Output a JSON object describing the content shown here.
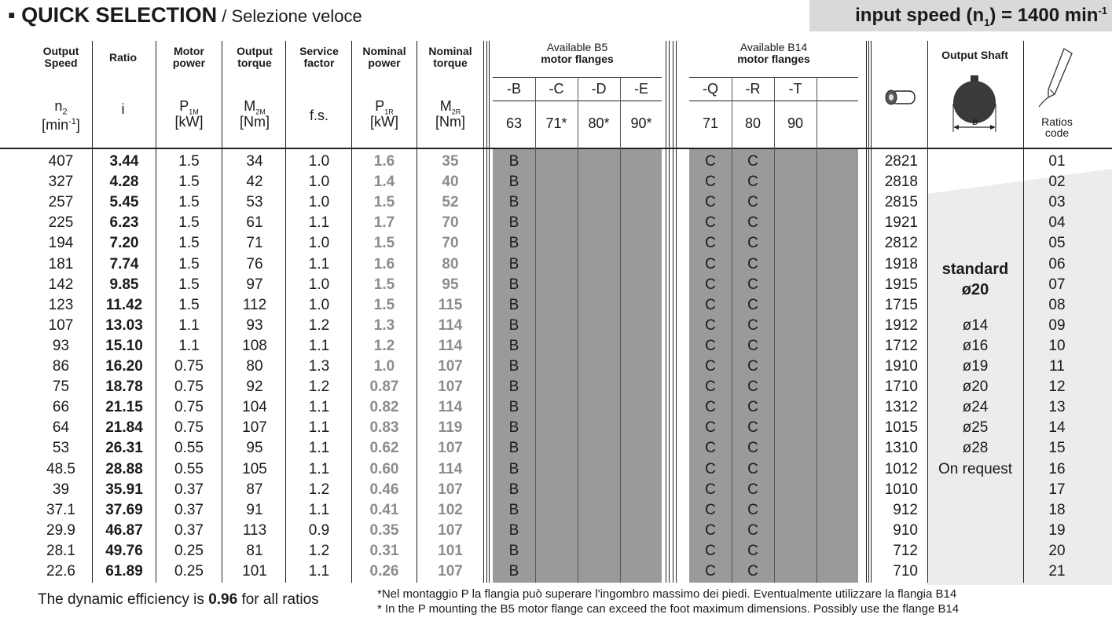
{
  "title": {
    "main": "QUICK SELECTION",
    "sub": " / Selezione veloce",
    "bullet": "▪"
  },
  "input_speed": {
    "label": "input speed (n",
    "sub": "1",
    "value": ") = 1400 min",
    "sup": "-1"
  },
  "headers": {
    "output_speed": [
      "Output",
      "Speed"
    ],
    "output_speed_sym": "n",
    "output_speed_sub": "2",
    "output_speed_unit": "[min",
    "output_speed_unit_sup": "-1",
    "output_speed_unit_end": "]",
    "ratio": "Ratio",
    "ratio_sym": "i",
    "motor_power": [
      "Motor",
      "power"
    ],
    "motor_power_sym": "P",
    "motor_power_sub": "1M",
    "motor_power_unit": "[kW]",
    "output_torque": [
      "Output",
      "torque"
    ],
    "output_torque_sym": "M",
    "output_torque_sub": "2M",
    "output_torque_unit": "[Nm]",
    "service_factor": [
      "Service",
      "factor"
    ],
    "service_factor_sym": "f.s.",
    "nominal_power": [
      "Nominal",
      "power"
    ],
    "nominal_power_sym": "P",
    "nominal_power_sub": "1R",
    "nominal_power_unit": "[kW]",
    "nominal_torque": [
      "Nominal",
      "torque"
    ],
    "nominal_torque_sym": "M",
    "nominal_torque_sub": "2R",
    "nominal_torque_unit": "[Nm]",
    "b5": [
      "Available B5",
      "motor flanges"
    ],
    "b5_cols": [
      "-B",
      "-C",
      "-D",
      "-E"
    ],
    "b5_sizes": [
      "63",
      "71*",
      "80*",
      "90*"
    ],
    "b14": [
      "Available B14",
      "motor flanges"
    ],
    "b14_cols": [
      "-Q",
      "-R",
      "-T"
    ],
    "b14_sizes": [
      "71",
      "80",
      "90"
    ],
    "output_shaft": "Output Shaft",
    "shaft_dia": "ø",
    "ratios_code": [
      "Ratios",
      "code"
    ]
  },
  "rows": [
    {
      "n2": "407",
      "i": "3.44",
      "p1m": "1.5",
      "m2m": "34",
      "fs": "1.0",
      "p1r": "1.6",
      "m2r": "35",
      "b": "B",
      "q": "C",
      "r": "C",
      "worm": "2821",
      "shaft": "",
      "code": "01"
    },
    {
      "n2": "327",
      "i": "4.28",
      "p1m": "1.5",
      "m2m": "42",
      "fs": "1.0",
      "p1r": "1.4",
      "m2r": "40",
      "b": "B",
      "q": "C",
      "r": "C",
      "worm": "2818",
      "shaft": "",
      "code": "02"
    },
    {
      "n2": "257",
      "i": "5.45",
      "p1m": "1.5",
      "m2m": "53",
      "fs": "1.0",
      "p1r": "1.5",
      "m2r": "52",
      "b": "B",
      "q": "C",
      "r": "C",
      "worm": "2815",
      "shaft": "",
      "code": "03"
    },
    {
      "n2": "225",
      "i": "6.23",
      "p1m": "1.5",
      "m2m": "61",
      "fs": "1.1",
      "p1r": "1.7",
      "m2r": "70",
      "b": "B",
      "q": "C",
      "r": "C",
      "worm": "1921",
      "shaft": "",
      "code": "04"
    },
    {
      "n2": "194",
      "i": "7.20",
      "p1m": "1.5",
      "m2m": "71",
      "fs": "1.0",
      "p1r": "1.5",
      "m2r": "70",
      "b": "B",
      "q": "C",
      "r": "C",
      "worm": "2812",
      "shaft": "",
      "code": "05"
    },
    {
      "n2": "181",
      "i": "7.74",
      "p1m": "1.5",
      "m2m": "76",
      "fs": "1.1",
      "p1r": "1.6",
      "m2r": "80",
      "b": "B",
      "q": "C",
      "r": "C",
      "worm": "1918",
      "shaft": "standard",
      "code": "06"
    },
    {
      "n2": "142",
      "i": "9.85",
      "p1m": "1.5",
      "m2m": "97",
      "fs": "1.0",
      "p1r": "1.5",
      "m2r": "95",
      "b": "B",
      "q": "C",
      "r": "C",
      "worm": "1915",
      "shaft": "ø20",
      "code": "07"
    },
    {
      "n2": "123",
      "i": "11.42",
      "p1m": "1.5",
      "m2m": "112",
      "fs": "1.0",
      "p1r": "1.5",
      "m2r": "115",
      "b": "B",
      "q": "C",
      "r": "C",
      "worm": "1715",
      "shaft": "",
      "code": "08"
    },
    {
      "n2": "107",
      "i": "13.03",
      "p1m": "1.1",
      "m2m": "93",
      "fs": "1.2",
      "p1r": "1.3",
      "m2r": "114",
      "b": "B",
      "q": "C",
      "r": "C",
      "worm": "1912",
      "shaft": "ø14",
      "code": "09"
    },
    {
      "n2": "93",
      "i": "15.10",
      "p1m": "1.1",
      "m2m": "108",
      "fs": "1.1",
      "p1r": "1.2",
      "m2r": "114",
      "b": "B",
      "q": "C",
      "r": "C",
      "worm": "1712",
      "shaft": "ø16",
      "code": "10"
    },
    {
      "n2": "86",
      "i": "16.20",
      "p1m": "0.75",
      "m2m": "80",
      "fs": "1.3",
      "p1r": "1.0",
      "m2r": "107",
      "b": "B",
      "q": "C",
      "r": "C",
      "worm": "1910",
      "shaft": "ø19",
      "code": "11"
    },
    {
      "n2": "75",
      "i": "18.78",
      "p1m": "0.75",
      "m2m": "92",
      "fs": "1.2",
      "p1r": "0.87",
      "m2r": "107",
      "b": "B",
      "q": "C",
      "r": "C",
      "worm": "1710",
      "shaft": "ø20",
      "code": "12"
    },
    {
      "n2": "66",
      "i": "21.15",
      "p1m": "0.75",
      "m2m": "104",
      "fs": "1.1",
      "p1r": "0.82",
      "m2r": "114",
      "b": "B",
      "q": "C",
      "r": "C",
      "worm": "1312",
      "shaft": "ø24",
      "code": "13"
    },
    {
      "n2": "64",
      "i": "21.84",
      "p1m": "0.75",
      "m2m": "107",
      "fs": "1.1",
      "p1r": "0.83",
      "m2r": "119",
      "b": "B",
      "q": "C",
      "r": "C",
      "worm": "1015",
      "shaft": "ø25",
      "code": "14"
    },
    {
      "n2": "53",
      "i": "26.31",
      "p1m": "0.55",
      "m2m": "95",
      "fs": "1.1",
      "p1r": "0.62",
      "m2r": "107",
      "b": "B",
      "q": "C",
      "r": "C",
      "worm": "1310",
      "shaft": "ø28",
      "code": "15"
    },
    {
      "n2": "48.5",
      "i": "28.88",
      "p1m": "0.55",
      "m2m": "105",
      "fs": "1.1",
      "p1r": "0.60",
      "m2r": "114",
      "b": "B",
      "q": "C",
      "r": "C",
      "worm": "1012",
      "shaft": "On request",
      "code": "16"
    },
    {
      "n2": "39",
      "i": "35.91",
      "p1m": "0.37",
      "m2m": "87",
      "fs": "1.2",
      "p1r": "0.46",
      "m2r": "107",
      "b": "B",
      "q": "C",
      "r": "C",
      "worm": "1010",
      "shaft": "",
      "code": "17"
    },
    {
      "n2": "37.1",
      "i": "37.69",
      "p1m": "0.37",
      "m2m": "91",
      "fs": "1.1",
      "p1r": "0.41",
      "m2r": "102",
      "b": "B",
      "q": "C",
      "r": "C",
      "worm": "912",
      "shaft": "",
      "code": "18"
    },
    {
      "n2": "29.9",
      "i": "46.87",
      "p1m": "0.37",
      "m2m": "113",
      "fs": "0.9",
      "p1r": "0.35",
      "m2r": "107",
      "b": "B",
      "q": "C",
      "r": "C",
      "worm": "910",
      "shaft": "",
      "code": "19"
    },
    {
      "n2": "28.1",
      "i": "49.76",
      "p1m": "0.25",
      "m2m": "81",
      "fs": "1.2",
      "p1r": "0.31",
      "m2r": "101",
      "b": "B",
      "q": "C",
      "r": "C",
      "worm": "712",
      "shaft": "",
      "code": "20"
    },
    {
      "n2": "22.6",
      "i": "61.89",
      "p1m": "0.25",
      "m2m": "101",
      "fs": "1.1",
      "p1r": "0.26",
      "m2r": "107",
      "b": "B",
      "q": "C",
      "r": "C",
      "worm": "710",
      "shaft": "",
      "code": "21"
    }
  ],
  "footer": {
    "efficiency_pre": "The dynamic efficiency is ",
    "efficiency_val": "0.96",
    "efficiency_post": " for all ratios",
    "note_it": "*Nel montaggio P la flangia può superare l'ingombro massimo dei piedi. Eventualmente utilizzare la flangia B14",
    "note_en": "* In the P mounting the B5 motor flange can exceed the foot maximum dimensions. Possibly use the flange B14"
  },
  "colors": {
    "flange_fill": "#9a9a9a",
    "light_text": "#8c8c8c",
    "speed_box": "#d9d9d9"
  }
}
